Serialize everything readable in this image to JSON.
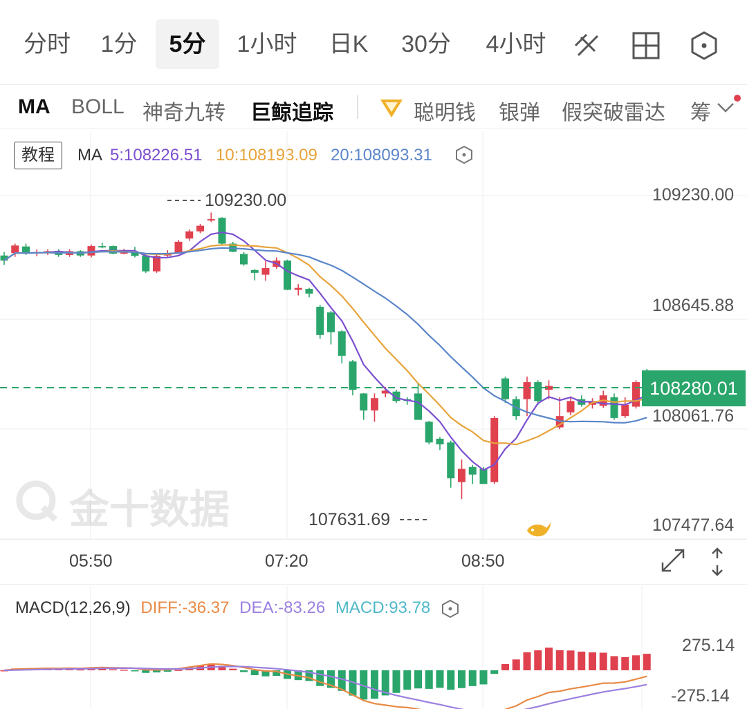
{
  "tabs": [
    {
      "label": "分时",
      "active": false
    },
    {
      "label": "1分",
      "active": false
    },
    {
      "label": "5分",
      "active": true
    },
    {
      "label": "1小时",
      "active": false
    },
    {
      "label": "日K",
      "active": false
    },
    {
      "label": "30分",
      "active": false
    },
    {
      "label": "4小时",
      "active": false
    }
  ],
  "tools": [
    "draw-line-icon",
    "grid-layout-icon",
    "settings-hex-icon"
  ],
  "indicators": {
    "ma": "MA",
    "boll": "BOLL",
    "magic9": "神奇九转",
    "whale": "巨鲸追踪",
    "smart_money": "聪明钱",
    "silver_bullet": "银弹",
    "fake_breakout": "假突破雷达",
    "more": "筹"
  },
  "ma_legend": {
    "tutorial": "教程",
    "name": "MA",
    "ma5": "5:108226.51",
    "ma10": "10:108193.09",
    "ma20": "20:108093.31",
    "ma5_color": "#7b4fd0",
    "ma10_color": "#e8a33b",
    "ma20_color": "#5b86c9"
  },
  "price_axis": [
    "109230.00",
    "108645.88",
    "108061.76",
    "107477.64"
  ],
  "last_price": "108280.01",
  "high_marker": "109230.00",
  "low_marker": "107631.69",
  "time_axis": [
    "05:50",
    "07:20",
    "08:50"
  ],
  "watermark": "金十数据",
  "macd_legend": {
    "name": "MACD(12,26,9)",
    "diff": "DIFF:-36.37",
    "dea": "DEA:-83.26",
    "macd": "MACD:93.78",
    "diff_color": "#e88a45",
    "dea_color": "#9b7fe0",
    "macd_color": "#4fb8c8"
  },
  "macd_axis": [
    "275.14",
    "-275.14"
  ],
  "colors": {
    "up": "#e0414f",
    "down": "#2aa56b"
  },
  "chart_data": {
    "type": "candlestick",
    "interval": "5分",
    "ylim": [
      107477.64,
      109230.0
    ],
    "candles": [
      [
        108912,
        108885,
        108930,
        108862
      ],
      [
        108925,
        108965,
        108975,
        108905
      ],
      [
        108960,
        108925,
        108975,
        108915
      ],
      [
        108925,
        108930,
        108945,
        108908
      ],
      [
        108930,
        108935,
        108945,
        108915
      ],
      [
        108935,
        108915,
        108945,
        108905
      ],
      [
        108915,
        108935,
        108945,
        108905
      ],
      [
        108935,
        108912,
        108940,
        108905
      ],
      [
        108912,
        108962,
        108970,
        108902
      ],
      [
        108962,
        108960,
        108980,
        108950
      ],
      [
        108962,
        108922,
        108965,
        108918
      ],
      [
        108922,
        108932,
        108948,
        108918
      ],
      [
        108932,
        108910,
        108958,
        108902
      ],
      [
        108912,
        108828,
        108925,
        108820
      ],
      [
        108828,
        108910,
        108915,
        108820
      ],
      [
        108912,
        108925,
        108940,
        108905
      ],
      [
        108925,
        108985,
        108995,
        108920
      ],
      [
        109002,
        109040,
        109050,
        108990
      ],
      [
        109040,
        109070,
        109080,
        109030
      ],
      [
        109100,
        109105,
        109140,
        109090
      ],
      [
        109112,
        108975,
        109115,
        108970
      ],
      [
        108975,
        108932,
        108985,
        108930
      ],
      [
        108920,
        108865,
        108930,
        108858
      ],
      [
        108835,
        108820,
        108840,
        108780
      ],
      [
        108810,
        108845,
        108882,
        108778
      ],
      [
        108852,
        108885,
        108902,
        108842
      ],
      [
        108885,
        108730,
        108890,
        108728
      ],
      [
        108730,
        108740,
        108760,
        108700
      ],
      [
        108735,
        108710,
        108740,
        108690
      ],
      [
        108640,
        108490,
        108650,
        108470
      ],
      [
        108610,
        108505,
        108618,
        108440
      ],
      [
        108510,
        108380,
        108515,
        108340
      ],
      [
        108350,
        108200,
        108358,
        108170
      ],
      [
        108180,
        108090,
        108182,
        108040
      ],
      [
        108090,
        108155,
        108180,
        108030
      ],
      [
        108180,
        108195,
        108215,
        108160
      ],
      [
        108190,
        108140,
        108200,
        108130
      ],
      [
        108150,
        108140,
        108160,
        108120
      ],
      [
        108180,
        108040,
        108235,
        108040
      ],
      [
        108030,
        107920,
        108035,
        107910
      ],
      [
        107940,
        107910,
        107950,
        107880
      ],
      [
        107920,
        107730,
        107930,
        107680
      ],
      [
        107710,
        107780,
        107830,
        107620
      ],
      [
        107790,
        107750,
        107800,
        107700
      ],
      [
        107780,
        107700,
        107790,
        107700
      ],
      [
        107710,
        108050,
        108060,
        107700
      ],
      [
        108260,
        108150,
        108270,
        108130
      ],
      [
        108150,
        108060,
        108165,
        108040
      ],
      [
        108150,
        108240,
        108270,
        108060
      ],
      [
        108240,
        108140,
        108250,
        108120
      ],
      [
        108200,
        108220,
        108250,
        108150
      ],
      [
        108000,
        108060,
        108160,
        107990
      ],
      [
        108080,
        108140,
        108165,
        108065
      ],
      [
        108150,
        108120,
        108170,
        108110
      ],
      [
        108120,
        108140,
        108155,
        108100
      ],
      [
        108115,
        108170,
        108195,
        108105
      ],
      [
        108160,
        108050,
        108180,
        108040
      ],
      [
        108060,
        108120,
        108160,
        108050
      ],
      [
        108110,
        108240,
        108250,
        108100
      ],
      [
        108290,
        108280,
        108310,
        108280
      ]
    ],
    "ma_lines": {
      "ma5": "108226.51",
      "ma10": "108193.09",
      "ma20": "108093.31"
    }
  }
}
